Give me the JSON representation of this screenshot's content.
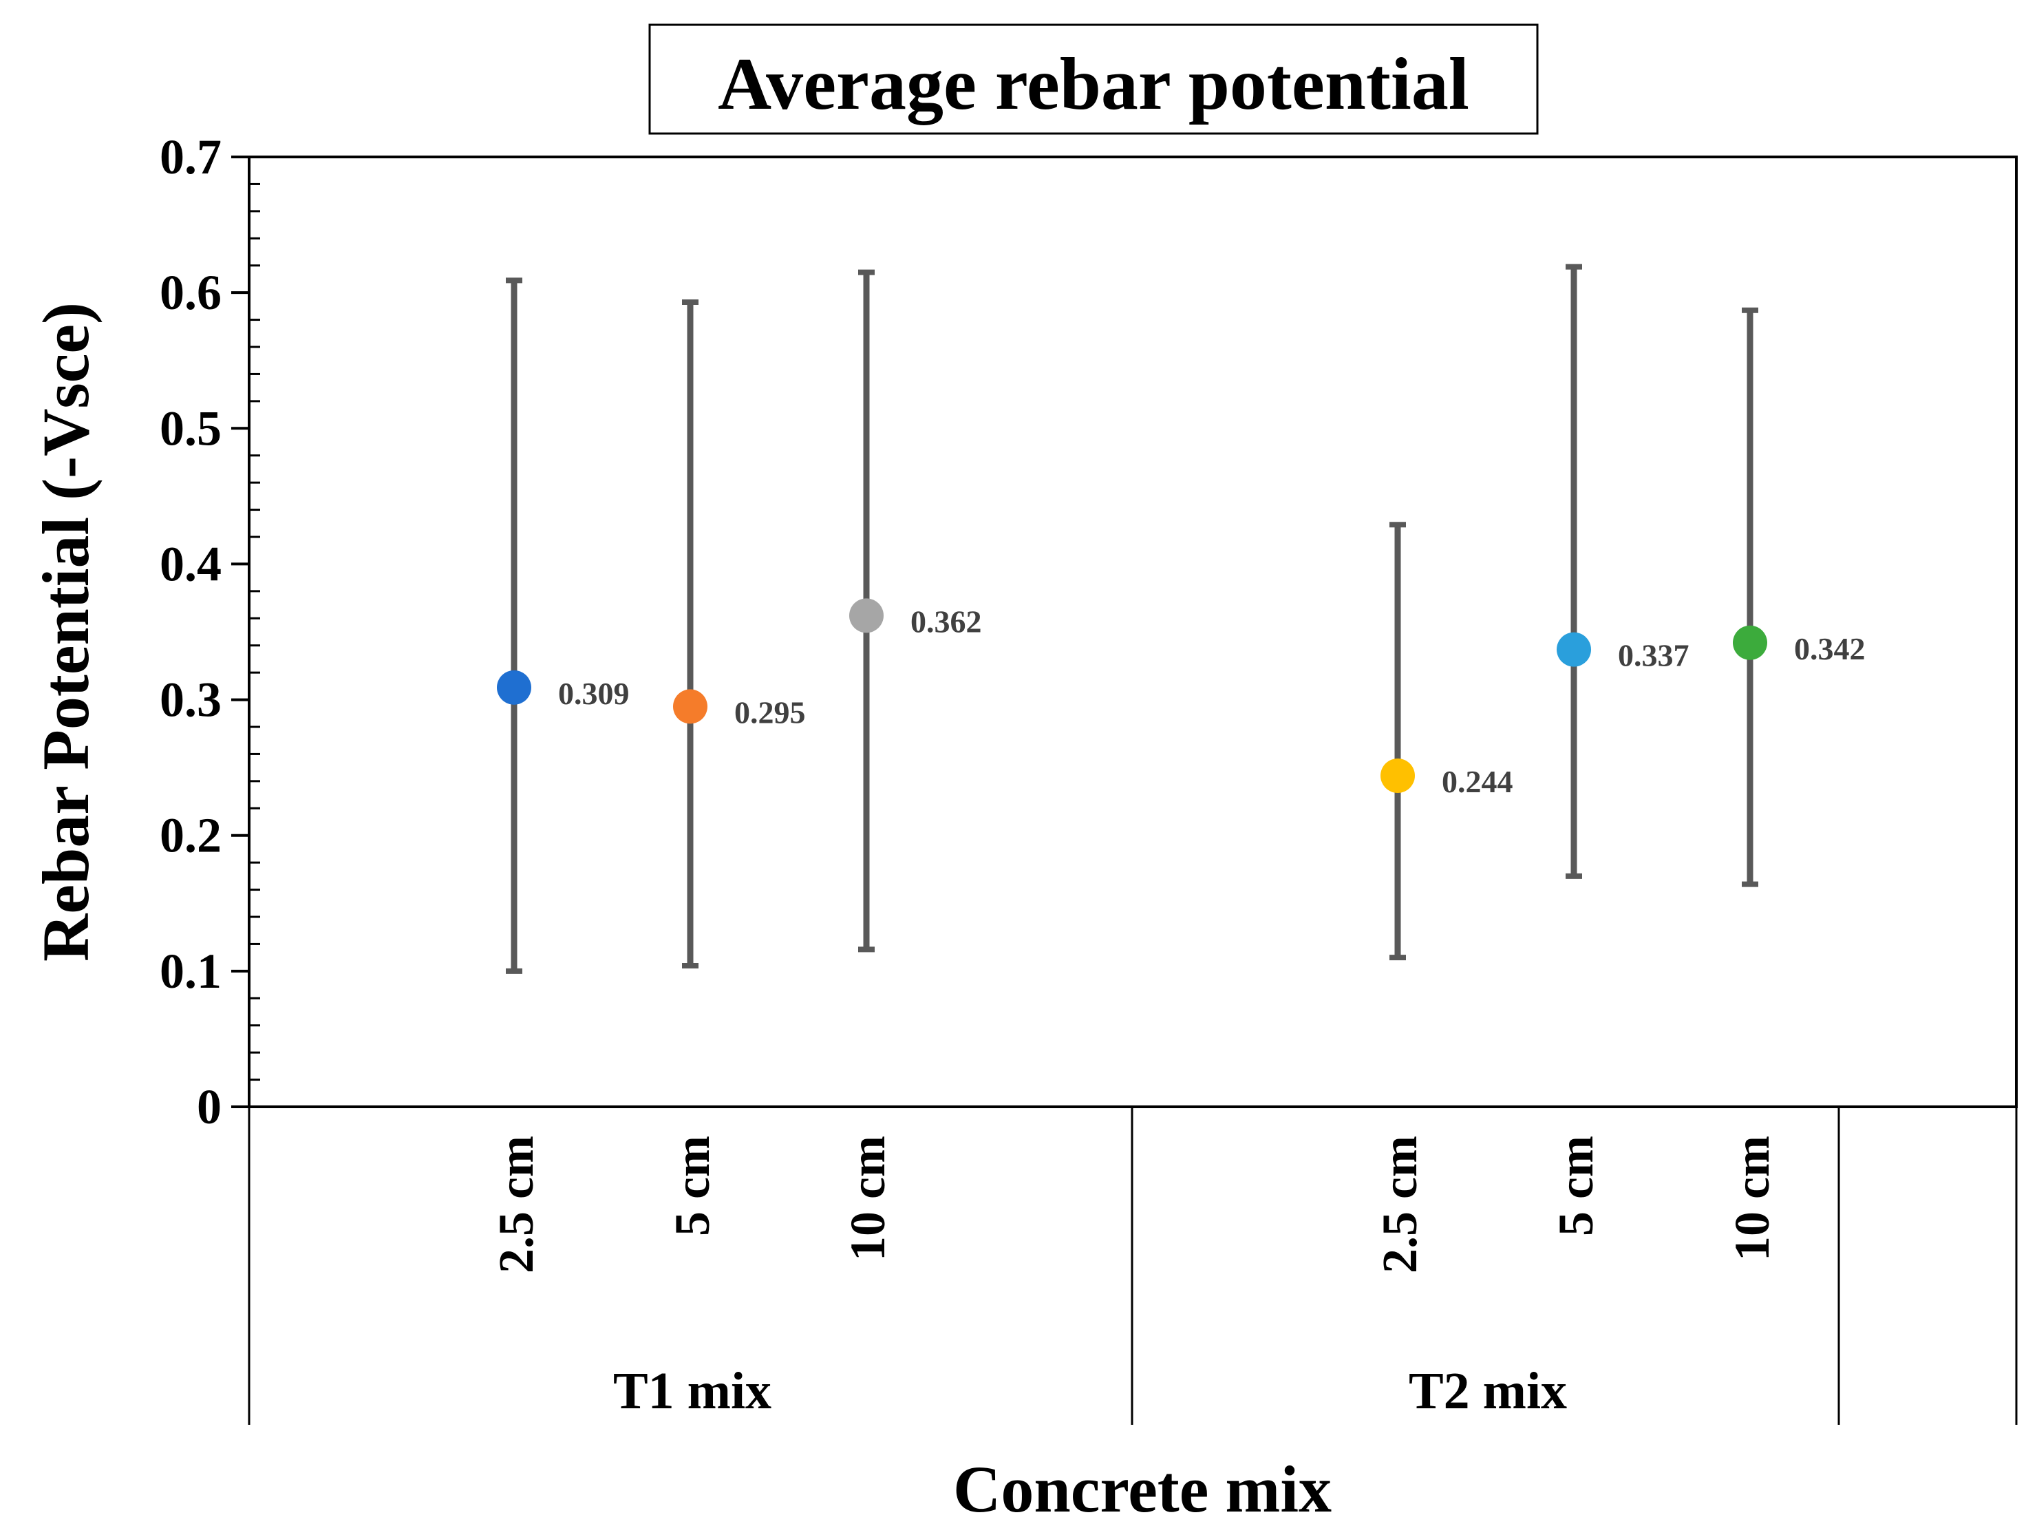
{
  "chart_data": {
    "type": "scatter",
    "title": "Average rebar potential",
    "xlabel": "Concrete mix",
    "ylabel": "Rebar Potential (-Vsce)",
    "ylim": [
      0,
      0.7
    ],
    "yticks": [
      "0",
      "0.1",
      "0.2",
      "0.3",
      "0.4",
      "0.5",
      "0.6",
      "0.7"
    ],
    "grid": false,
    "groups": [
      {
        "name": "T1 mix",
        "categories": [
          "2.5 cm",
          "5 cm",
          "10 cm"
        ]
      },
      {
        "name": "T2 mix",
        "categories": [
          "2.5 cm",
          "5 cm",
          "10 cm"
        ]
      }
    ],
    "points": [
      {
        "group": "T1 mix",
        "category": "2.5 cm",
        "value": 0.309,
        "label": "0.309",
        "error_low": 0.1,
        "error_high": 0.609,
        "color": "#1f6fd1"
      },
      {
        "group": "T1 mix",
        "category": "5 cm",
        "value": 0.295,
        "label": "0.295",
        "error_low": 0.104,
        "error_high": 0.593,
        "color": "#f57c2a"
      },
      {
        "group": "T1 mix",
        "category": "10 cm",
        "value": 0.362,
        "label": "0.362",
        "error_low": 0.116,
        "error_high": 0.615,
        "color": "#a6a6a6"
      },
      {
        "group": "T2 mix",
        "category": "2.5 cm",
        "value": 0.244,
        "label": "0.244",
        "error_low": 0.11,
        "error_high": 0.429,
        "color": "#ffc000"
      },
      {
        "group": "T2 mix",
        "category": "5 cm",
        "value": 0.337,
        "label": "0.337",
        "error_low": 0.17,
        "error_high": 0.619,
        "color": "#2a9fdc"
      },
      {
        "group": "T2 mix",
        "category": "10 cm",
        "value": 0.342,
        "label": "0.342",
        "error_low": 0.164,
        "error_high": 0.587,
        "color": "#3cab3c"
      }
    ],
    "error_bar_color": "#595959"
  }
}
